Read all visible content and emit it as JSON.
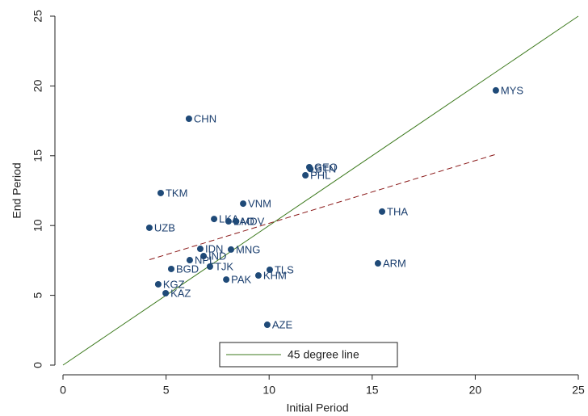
{
  "chart_data": {
    "type": "scatter",
    "x_label": "Initial Period",
    "y_label": "End Period",
    "xlim": [
      0,
      25
    ],
    "ylim": [
      0,
      25
    ],
    "xticks": [
      0,
      5,
      10,
      15,
      20,
      25
    ],
    "yticks": [
      0,
      5,
      10,
      15,
      20,
      25
    ],
    "point_color": "#1f4a78",
    "points": {
      "labels": [
        "CHN",
        "MYS",
        "GEO",
        "BTN",
        "PHL",
        "TKM",
        "VNM",
        "THA",
        "LKA",
        "LAO",
        "MDV",
        "UZB",
        "IDN",
        "MNG",
        "IND",
        "NPL",
        "BGD",
        "TJK",
        "TLS",
        "ARM",
        "KHM",
        "PAK",
        "KGZ",
        "KAZ",
        "AZE"
      ],
      "x": [
        6.11,
        21.0,
        11.95,
        12.0,
        11.76,
        4.74,
        8.74,
        15.48,
        7.33,
        8.03,
        8.4,
        4.19,
        6.66,
        8.15,
        6.82,
        6.15,
        5.25,
        7.13,
        10.03,
        15.28,
        9.48,
        7.92,
        4.62,
        4.98,
        9.91
      ],
      "y": [
        17.65,
        19.68,
        14.18,
        14.05,
        13.6,
        12.33,
        11.57,
        11.0,
        10.47,
        10.3,
        10.3,
        9.84,
        8.33,
        8.28,
        7.81,
        7.52,
        6.89,
        7.06,
        6.83,
        7.29,
        6.42,
        6.13,
        5.79,
        5.15,
        2.89
      ]
    },
    "fit_line": {
      "color": "#8b1a1a",
      "x": [
        4.19,
        21.0
      ],
      "y": [
        7.55,
        15.1
      ]
    },
    "reference_line": {
      "name": "45 degree line",
      "color": "#3d7a1e",
      "x": [
        0,
        25
      ],
      "y": [
        0,
        25
      ]
    }
  }
}
